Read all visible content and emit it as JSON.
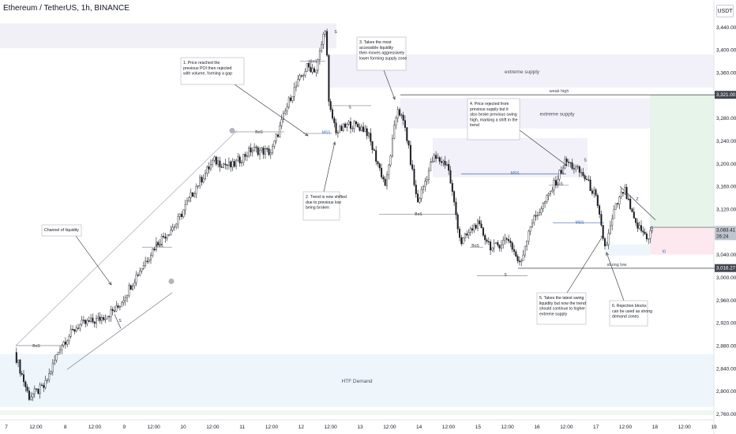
{
  "header": {
    "title": "Ethereum / TetherUS, 1h, BINANCE",
    "currency": "USDT"
  },
  "chart_data": {
    "type": "candlestick",
    "ylim": [
      2755,
      3460
    ],
    "y_ticks": [
      {
        "v": 3440,
        "label": "3,440.00"
      },
      {
        "v": 3400,
        "label": "3,400.00"
      },
      {
        "v": 3360,
        "label": "3,360.00"
      },
      {
        "v": 3320,
        "label": "3,320.00"
      },
      {
        "v": 3280,
        "label": "3,280.00"
      },
      {
        "v": 3240,
        "label": "3,240.00"
      },
      {
        "v": 3200,
        "label": "3,200.00"
      },
      {
        "v": 3160,
        "label": "3,160.00"
      },
      {
        "v": 3120,
        "label": "3,120.00"
      },
      {
        "v": 3080,
        "label": "3,080.00"
      },
      {
        "v": 3040,
        "label": "3,040.00"
      },
      {
        "v": 3000,
        "label": "3,000.00"
      },
      {
        "v": 2960,
        "label": "2,960.00"
      },
      {
        "v": 2920,
        "label": "2,920.00"
      },
      {
        "v": 2880,
        "label": "2,880.00"
      },
      {
        "v": 2840,
        "label": "2,840.00"
      },
      {
        "v": 2800,
        "label": "2,800.00"
      },
      {
        "v": 2760,
        "label": "2,760.00"
      }
    ],
    "x_ticks": [
      "7",
      "12:00",
      "8",
      "12:00",
      "9",
      "12:00",
      "10",
      "12:00",
      "11",
      "12:00",
      "12",
      "12:00",
      "13",
      "12:00",
      "14",
      "12:00",
      "15",
      "12:00",
      "16",
      "12:00",
      "17",
      "12:00",
      "18",
      "12:00",
      "19"
    ],
    "price_labels": [
      {
        "v": 3321,
        "label": "3,321.00",
        "color": "#434651"
      },
      {
        "v": 3083.41,
        "label": "3,083.41",
        "sub": "26:24",
        "color": "#c0c4cc"
      },
      {
        "v": 3016.27,
        "label": "3,016.27",
        "color": "#434651"
      }
    ],
    "zones": [
      {
        "x0": 0,
        "x1": 426,
        "y0": 3447,
        "y1": 3403,
        "color": "#f2f0f7"
      },
      {
        "x0": 418,
        "x1": 904,
        "y0": 3392,
        "y1": 3334,
        "color": "#f2f0f8",
        "label": "extreme supply"
      },
      {
        "x0": 507,
        "x1": 904,
        "y0": 3315,
        "y1": 3262,
        "color": "#f2f0f8",
        "label": "extreme supply"
      },
      {
        "x0": 548,
        "x1": 744,
        "y0": 3245,
        "y1": 3176,
        "color": "#f2f0f8"
      },
      {
        "x0": 0,
        "x1": 904,
        "y0": 2865,
        "y1": 2772,
        "color": "#eef6fc",
        "label": "HTF Demand"
      },
      {
        "x0": 0,
        "x1": 904,
        "y0": 2766,
        "y1": 2758,
        "color": "#eef8ee"
      },
      {
        "x0": 823,
        "x1": 904,
        "y0": 3321,
        "y1": 3088,
        "color": "#e6f4ea"
      },
      {
        "x0": 823,
        "x1": 904,
        "y0": 3088,
        "y1": 3040,
        "color": "#fce8ee"
      },
      {
        "x0": 766,
        "x1": 823,
        "y0": 3058,
        "y1": 3038,
        "color": "#eef6fc"
      }
    ],
    "level_labels": [
      {
        "text": "weak high",
        "v": 3321,
        "x": 708
      },
      {
        "text": "strong low",
        "v": 3016,
        "x": 781
      }
    ],
    "small_labels": [
      {
        "text": "S",
        "x": 425,
        "v": 3432
      },
      {
        "text": "BoS",
        "x": 397,
        "v": 3380
      },
      {
        "text": "S",
        "x": 443,
        "v": 3300
      },
      {
        "text": "BoS",
        "x": 328,
        "v": 3256
      },
      {
        "text": "MSS",
        "x": 413,
        "v": 3255
      },
      {
        "text": "BoS",
        "x": 530,
        "v": 3112
      },
      {
        "text": "S",
        "x": 741,
        "v": 3207
      },
      {
        "text": "MSS",
        "x": 652,
        "v": 3184
      },
      {
        "text": "BoS",
        "x": 708,
        "v": 3165
      },
      {
        "text": "MSS",
        "x": 734,
        "v": 3097
      },
      {
        "text": "BoS",
        "x": 602,
        "v": 3056
      },
      {
        "text": "S",
        "x": 640,
        "v": 3005
      },
      {
        "text": "Z",
        "x": 807,
        "v": 3138
      },
      {
        "text": "BoS",
        "x": 202,
        "v": 3056
      },
      {
        "text": "S",
        "x": 152,
        "v": 2924
      },
      {
        "text": "BoS",
        "x": 46,
        "v": 2880
      },
      {
        "text": "I0",
        "x": 841,
        "v": 3046
      }
    ],
    "annotations": [
      {
        "text": "1. Price reached the previous POI then rejected with volume, forming a gap"
      },
      {
        "text": "2. Trend is now shifted due to previous low being broken"
      },
      {
        "text": "3. Takes the most accessible liquidity then moves aggressively lower forming supply zone"
      },
      {
        "text": "4. Price rejected from previous supply but it also broke previous swing high, marking a shift in the trend"
      },
      {
        "text": "5. Takes the latest swing liquidity but now the trend should continue to higher extreme supply"
      },
      {
        "text": "6. Rejection blocks can be used as strong demand zones"
      },
      {
        "text": "Channel of liquidity"
      }
    ],
    "path_points": [
      [
        20,
        2868
      ],
      [
        38,
        2790
      ],
      [
        58,
        2808
      ],
      [
        78,
        2880
      ],
      [
        100,
        2915
      ],
      [
        125,
        2925
      ],
      [
        150,
        2945
      ],
      [
        175,
        3005
      ],
      [
        200,
        3060
      ],
      [
        225,
        3095
      ],
      [
        250,
        3160
      ],
      [
        272,
        3205
      ],
      [
        295,
        3195
      ],
      [
        320,
        3225
      ],
      [
        345,
        3220
      ],
      [
        370,
        3320
      ],
      [
        390,
        3370
      ],
      [
        402,
        3365
      ],
      [
        414,
        3445
      ],
      [
        418,
        3300
      ],
      [
        428,
        3255
      ],
      [
        445,
        3270
      ],
      [
        465,
        3260
      ],
      [
        490,
        3160
      ],
      [
        505,
        3300
      ],
      [
        515,
        3260
      ],
      [
        530,
        3130
      ],
      [
        550,
        3210
      ],
      [
        568,
        3200
      ],
      [
        585,
        3060
      ],
      [
        605,
        3095
      ],
      [
        625,
        3050
      ],
      [
        645,
        3070
      ],
      [
        660,
        3020
      ],
      [
        672,
        3090
      ],
      [
        695,
        3140
      ],
      [
        718,
        3205
      ],
      [
        740,
        3180
      ],
      [
        755,
        3145
      ],
      [
        768,
        3050
      ],
      [
        780,
        3120
      ],
      [
        792,
        3155
      ],
      [
        805,
        3095
      ],
      [
        822,
        3070
      ],
      [
        826,
        3083
      ]
    ],
    "lines": [
      {
        "points": [
          [
            20,
            2880
          ],
          [
            300,
            3258
          ]
        ],
        "color": "#b2b5be",
        "w": 0.8,
        "dash": "0"
      },
      {
        "points": [
          [
            85,
            2838
          ],
          [
            218,
            2973
          ]
        ],
        "color": "#8a8d96",
        "w": 0.8,
        "dash": "0"
      },
      {
        "points": [
          [
            20,
            2880
          ],
          [
            80,
            2880
          ]
        ],
        "color": "#9598a1",
        "w": 0.8,
        "dash": "0"
      },
      {
        "points": [
          [
            180,
            3053
          ],
          [
            218,
            3053
          ]
        ],
        "color": "#9598a1",
        "w": 0.8,
        "dash": "0"
      },
      {
        "points": [
          [
            295,
            3256
          ],
          [
            360,
            3256
          ]
        ],
        "color": "#9598a1",
        "w": 0.8,
        "dash": "0"
      },
      {
        "points": [
          [
            380,
            3380
          ],
          [
            412,
            3380
          ]
        ],
        "color": "#9598a1",
        "w": 0.8,
        "dash": "0"
      },
      {
        "points": [
          [
            384,
            3253
          ],
          [
            420,
            3253
          ]
        ],
        "color": "#9598a1",
        "w": 0.8,
        "dash": "0"
      },
      {
        "points": [
          [
            418,
            3302
          ],
          [
            470,
            3302
          ]
        ],
        "color": "#9598a1",
        "w": 0.8,
        "dash": "0"
      },
      {
        "points": [
          [
            480,
            3111
          ],
          [
            580,
            3111
          ]
        ],
        "color": "#9598a1",
        "w": 0.8,
        "dash": "0"
      },
      {
        "points": [
          [
            507,
            3321
          ],
          [
            932,
            3321
          ]
        ],
        "color": "#555865",
        "w": 0.9,
        "dash": "0"
      },
      {
        "points": [
          [
            584,
            3182
          ],
          [
            717,
            3182
          ]
        ],
        "color": "#5b7fbf",
        "w": 0.8,
        "dash": "0"
      },
      {
        "points": [
          [
            695,
            3162
          ],
          [
            720,
            3162
          ]
        ],
        "color": "#9598a1",
        "w": 0.8,
        "dash": "0"
      },
      {
        "points": [
          [
            700,
            3096
          ],
          [
            765,
            3096
          ]
        ],
        "color": "#5b7fbf",
        "w": 0.8,
        "dash": "0"
      },
      {
        "points": [
          [
            595,
            3053
          ],
          [
            612,
            3053
          ]
        ],
        "color": "#9598a1",
        "w": 0.8,
        "dash": "0"
      },
      {
        "points": [
          [
            604,
            3003
          ],
          [
            668,
            3003
          ]
        ],
        "color": "#9598a1",
        "w": 0.8,
        "dash": "0"
      },
      {
        "points": [
          [
            656,
            3016
          ],
          [
            932,
            3016
          ]
        ],
        "color": "#555865",
        "w": 0.9,
        "dash": "0"
      },
      {
        "points": [
          [
            823,
            3088
          ],
          [
            932,
            3088
          ]
        ],
        "color": "#787b86",
        "w": 0.8,
        "dash": "0"
      },
      {
        "points": [
          [
            785,
            3160
          ],
          [
            830,
            3101
          ]
        ],
        "color": "#555865",
        "w": 0.8,
        "dash": "0"
      },
      {
        "points": [
          [
            145,
            2935
          ],
          [
            153,
            2910
          ]
        ],
        "color": "#555865",
        "w": 0.8,
        "dash": "0"
      }
    ],
    "circles": [
      {
        "x": 294,
        "v": 3258
      },
      {
        "x": 217,
        "v": 2993
      }
    ]
  }
}
